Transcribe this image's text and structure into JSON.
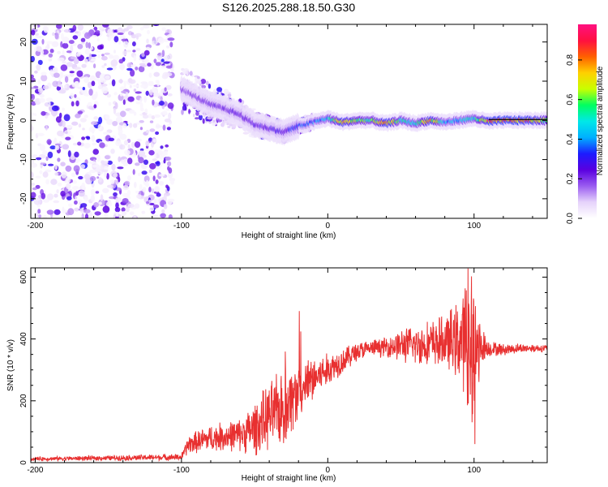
{
  "title": "S126.2025.288.18.50.G30",
  "chart_data": [
    {
      "type": "heatmap",
      "title": "S126.2025.288.18.50.G30",
      "xlabel": "Height of straight line (km)",
      "ylabel": "Frequency (Hz)",
      "xlim": [
        -203,
        150
      ],
      "ylim": [
        -25,
        24.5
      ],
      "xticks": [
        -200,
        -100,
        0,
        100
      ],
      "yticks": [
        -20,
        -10,
        0,
        10,
        20
      ],
      "colorbar": {
        "label": "Normalized spectral amplitude",
        "range": [
          0,
          0.98
        ],
        "ticks": [
          0.0,
          0.2,
          0.4,
          0.6,
          0.8
        ],
        "colormap": [
          "#ffffff",
          "#e6d3fb",
          "#9a5cf0",
          "#5a00e0",
          "#1c1cff",
          "#00b0ff",
          "#00e8e8",
          "#00ff60",
          "#c8ff00",
          "#ffd000",
          "#ff6000",
          "#ff1040",
          "#ff1080"
        ]
      },
      "ridge": {
        "x": [
          -100,
          -90,
          -80,
          -70,
          -60,
          -50,
          -40,
          -30,
          -20,
          -10,
          0,
          10,
          20,
          30,
          40,
          50,
          60,
          70,
          80,
          90,
          100,
          110,
          120,
          130,
          140,
          150
        ],
        "freq": [
          8,
          6,
          4,
          3,
          1.5,
          -1,
          -2,
          -3,
          -1.5,
          -0.5,
          0.5,
          -0.5,
          0,
          0,
          -0.8,
          0,
          -0.8,
          0,
          -0.5,
          0,
          0.5,
          -0.3,
          0,
          0,
          0,
          0
        ],
        "amplitude": [
          0.22,
          0.25,
          0.27,
          0.27,
          0.3,
          0.28,
          0.3,
          0.3,
          0.38,
          0.42,
          0.5,
          0.9,
          0.7,
          0.62,
          0.92,
          0.6,
          0.55,
          0.9,
          0.45,
          0.5,
          0.55,
          0.93,
          0.95,
          0.95,
          0.9,
          0.7
        ]
      },
      "noise_region": [
        -203,
        -100
      ]
    },
    {
      "type": "line",
      "xlabel": "Height of straight line (km)",
      "ylabel": "SNR (10 * v/v)",
      "xlim": [
        -203,
        150
      ],
      "ylim": [
        0,
        630
      ],
      "xticks": [
        -200,
        -100,
        0,
        100
      ],
      "yticks": [
        0,
        200,
        400,
        600
      ],
      "series": [
        {
          "name": "SNR",
          "color": "#e83030",
          "envelope_x": [
            -203,
            -150,
            -100,
            -95,
            -80,
            -60,
            -50,
            -40,
            -30,
            -20,
            -10,
            0,
            10,
            20,
            30,
            40,
            50,
            60,
            70,
            80,
            90,
            95,
            100,
            105,
            110,
            120,
            130,
            140,
            150
          ],
          "envelope_mean": [
            12,
            15,
            18,
            60,
            80,
            90,
            110,
            150,
            180,
            230,
            270,
            300,
            330,
            360,
            370,
            375,
            380,
            380,
            385,
            390,
            395,
            390,
            370,
            380,
            370,
            365,
            370,
            370,
            370
          ],
          "envelope_amp": [
            6,
            8,
            10,
            30,
            40,
            50,
            80,
            100,
            120,
            90,
            70,
            50,
            40,
            30,
            25,
            30,
            50,
            60,
            70,
            80,
            120,
            200,
            250,
            60,
            25,
            18,
            15,
            12,
            12
          ]
        }
      ]
    }
  ]
}
